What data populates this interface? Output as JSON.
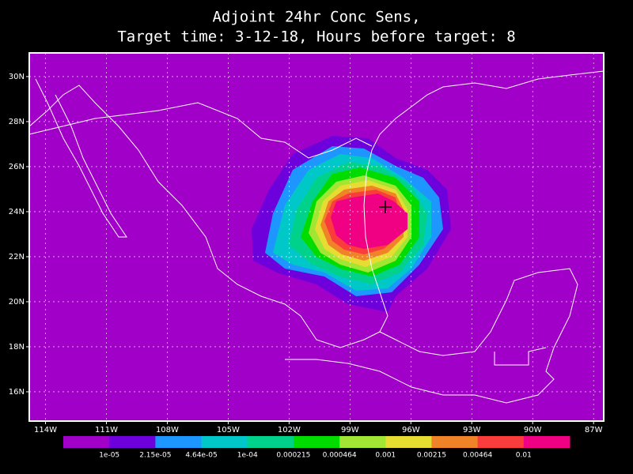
{
  "map": {
    "title": [
      "Adjoint 24hr Conc Sens,",
      "Target time: 3-12-18, Hours before target: 8"
    ],
    "xlim": [
      -114.8,
      -86.5
    ],
    "ylim": [
      14.7,
      31.05
    ],
    "xticks": [
      {
        "value": -114,
        "label": "114W"
      },
      {
        "value": -111,
        "label": "111W"
      },
      {
        "value": -108,
        "label": "108W"
      },
      {
        "value": -105,
        "label": "105W"
      },
      {
        "value": -102,
        "label": "102W"
      },
      {
        "value": -99,
        "label": "99W"
      },
      {
        "value": -96,
        "label": "96W"
      },
      {
        "value": -93,
        "label": "93W"
      },
      {
        "value": -90,
        "label": "90W"
      },
      {
        "value": -87,
        "label": "87W"
      }
    ],
    "yticks": [
      {
        "value": 16,
        "label": "16N"
      },
      {
        "value": 18,
        "label": "18N"
      },
      {
        "value": 20,
        "label": "20N"
      },
      {
        "value": 22,
        "label": "22N"
      },
      {
        "value": 24,
        "label": "24N"
      },
      {
        "value": 26,
        "label": "26N"
      },
      {
        "value": 28,
        "label": "28N"
      },
      {
        "value": 30,
        "label": "30N"
      }
    ],
    "grid": true,
    "colorbar": {
      "colors": [
        "#a000c8",
        "#6e00dc",
        "#1e96ff",
        "#00c8c8",
        "#00d28c",
        "#00dc00",
        "#a0e632",
        "#e6dc32",
        "#f08228",
        "#fa3c3c",
        "#f00082"
      ],
      "labels": [
        "1e-05",
        "2.15e-05",
        "4.64e-05",
        "1e-04",
        "0.000215",
        "0.000464",
        "0.001",
        "0.00215",
        "0.00464",
        "0.01"
      ]
    }
  }
}
